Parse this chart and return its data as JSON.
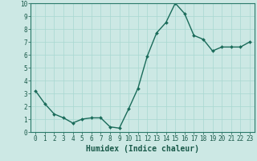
{
  "x": [
    0,
    1,
    2,
    3,
    4,
    5,
    6,
    7,
    8,
    9,
    10,
    11,
    12,
    13,
    14,
    15,
    16,
    17,
    18,
    19,
    20,
    21,
    22,
    23
  ],
  "y": [
    3.2,
    2.2,
    1.4,
    1.1,
    0.7,
    1.0,
    1.1,
    1.1,
    0.4,
    0.3,
    1.8,
    3.4,
    5.9,
    7.7,
    8.5,
    10.0,
    9.2,
    7.5,
    7.2,
    6.3,
    6.6,
    6.6,
    6.6,
    7.0
  ],
  "line_color": "#1a6b5a",
  "marker": "D",
  "marker_size": 2.0,
  "linewidth": 1.0,
  "xlabel": "Humidex (Indice chaleur)",
  "xlabel_fontsize": 7,
  "ylim": [
    0,
    10
  ],
  "xlim": [
    -0.5,
    23.5
  ],
  "yticks": [
    0,
    1,
    2,
    3,
    4,
    5,
    6,
    7,
    8,
    9,
    10
  ],
  "xticks": [
    0,
    1,
    2,
    3,
    4,
    5,
    6,
    7,
    8,
    9,
    10,
    11,
    12,
    13,
    14,
    15,
    16,
    17,
    18,
    19,
    20,
    21,
    22,
    23
  ],
  "grid_color": "#a8d8d0",
  "bg_color": "#cce8e4",
  "tick_fontsize": 5.5,
  "tick_color": "#1a5a4a",
  "spine_color": "#2a7a6a"
}
